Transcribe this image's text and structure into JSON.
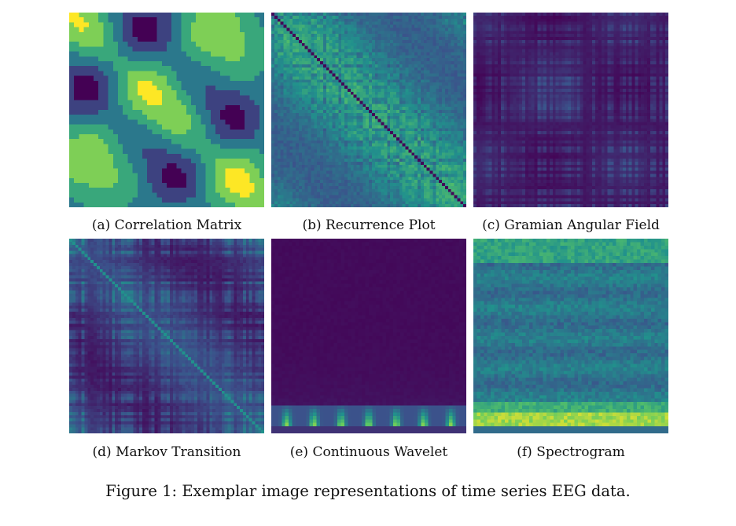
{
  "figure": {
    "caption": "Figure 1: Exemplar image representations of time series EEG data.",
    "colormap": [
      "#440154",
      "#3b528b",
      "#21918c",
      "#5ec962",
      "#fde725"
    ],
    "panels": [
      {
        "label": "(a) Correlation Matrix"
      },
      {
        "label": "(b) Recurrence Plot"
      },
      {
        "label": "(c) Gramian Angular Field"
      },
      {
        "label": "(d) Markov Transition"
      },
      {
        "label": "(e) Continuous Wavelet"
      },
      {
        "label": "(f) Spectrogram"
      }
    ]
  }
}
